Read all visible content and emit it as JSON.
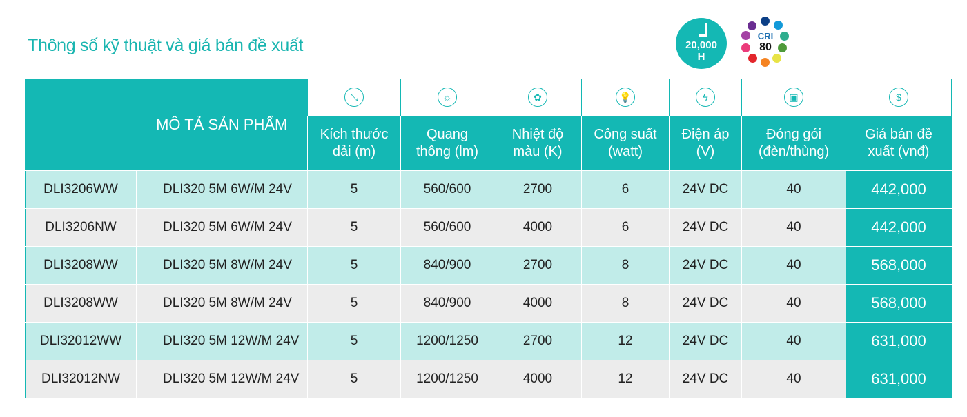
{
  "title": "Thông số kỹ thuật và giá bán đề xuất",
  "badges": {
    "lifetime": "20,000",
    "lifetime_unit": "H",
    "cri_label": "CRI",
    "cri_value": "80"
  },
  "colors": {
    "accent": "#14b8b4",
    "row_light": "#c1ece9",
    "row_gray": "#ececec"
  },
  "header": {
    "product_desc": "MÔ TẢ SẢN PHẨM",
    "columns": [
      {
        "icon": "resize-arrows-icon",
        "l1": "Kích thước",
        "l2": "dải (m)"
      },
      {
        "icon": "sun-icon",
        "l1": "Quang",
        "l2": "thông (lm)"
      },
      {
        "icon": "palette-icon",
        "l1": "Nhiệt độ",
        "l2": "màu (K)"
      },
      {
        "icon": "lightbulb-icon",
        "l1": "Công suất",
        "l2": "(watt)"
      },
      {
        "icon": "lightning-icon",
        "l1": "Điện áp",
        "l2": "(V)"
      },
      {
        "icon": "box-icon",
        "l1": "Đóng gói",
        "l2": "(đèn/thùng)"
      },
      {
        "icon": "dollar-icon",
        "l1": "Giá bán đề",
        "l2": "xuất (vnđ)"
      }
    ]
  },
  "rows": [
    [
      "DLI3206WW",
      "DLI320 5M 6W/M 24V",
      "5",
      "560/600",
      "2700",
      "6",
      "24V DC",
      "40",
      "442,000"
    ],
    [
      "DLI3206NW",
      "DLI320 5M 6W/M 24V",
      "5",
      "560/600",
      "4000",
      "6",
      "24V DC",
      "40",
      "442,000"
    ],
    [
      "DLI3208WW",
      "DLI320 5M 8W/M 24V",
      "5",
      "840/900",
      "2700",
      "8",
      "24V DC",
      "40",
      "568,000"
    ],
    [
      "DLI3208WW",
      "DLI320 5M 8W/M 24V",
      "5",
      "840/900",
      "4000",
      "8",
      "24V DC",
      "40",
      "568,000"
    ],
    [
      "DLI32012WW",
      "DLI320 5M 12W/M 24V",
      "5",
      "1200/1250",
      "2700",
      "12",
      "24V DC",
      "40",
      "631,000"
    ],
    [
      "DLI32012NW",
      "DLI320 5M 12W/M 24V",
      "5",
      "1200/1250",
      "4000",
      "12",
      "24V DC",
      "40",
      "631,000"
    ]
  ]
}
